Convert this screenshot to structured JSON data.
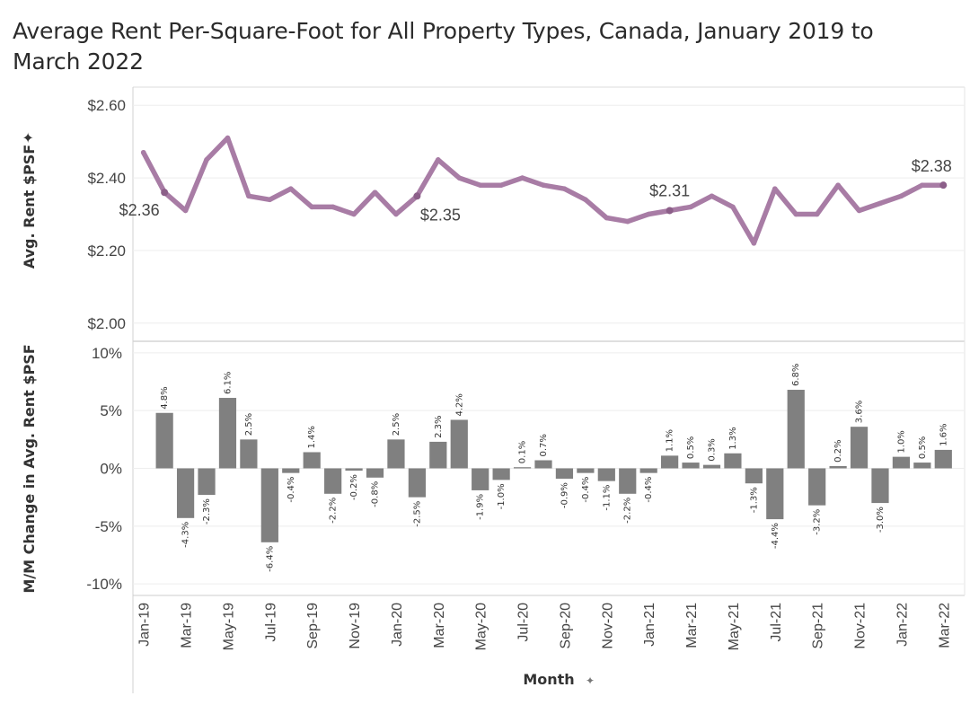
{
  "title": "Average Rent Per-Square-Foot for All Property Types, Canada, January 2019 to March 2022",
  "chart_data": [
    {
      "type": "line",
      "ylabel": "Avg. Rent $PSF",
      "ylim": [
        1.95,
        2.65
      ],
      "yticks": [
        "$2.60",
        "$2.40",
        "$2.20",
        "$2.00"
      ],
      "ytick_values": [
        2.6,
        2.4,
        2.2,
        2.0
      ],
      "color": "#a87ca5",
      "x": [
        "Jan-19",
        "Feb-19",
        "Mar-19",
        "Apr-19",
        "May-19",
        "Jun-19",
        "Jul-19",
        "Aug-19",
        "Sep-19",
        "Oct-19",
        "Nov-19",
        "Dec-19",
        "Jan-20",
        "Feb-20",
        "Mar-20",
        "Apr-20",
        "May-20",
        "Jun-20",
        "Jul-20",
        "Aug-20",
        "Sep-20",
        "Oct-20",
        "Nov-20",
        "Dec-20",
        "Jan-21",
        "Feb-21",
        "Mar-21",
        "Apr-21",
        "May-21",
        "Jun-21",
        "Jul-21",
        "Aug-21",
        "Sep-21",
        "Oct-21",
        "Nov-21",
        "Dec-21",
        "Jan-22",
        "Feb-22",
        "Mar-22"
      ],
      "values": [
        2.47,
        2.36,
        2.31,
        2.45,
        2.51,
        2.35,
        2.34,
        2.37,
        2.32,
        2.32,
        2.3,
        2.36,
        2.3,
        2.35,
        2.45,
        2.4,
        2.38,
        2.38,
        2.4,
        2.38,
        2.37,
        2.34,
        2.29,
        2.28,
        2.3,
        2.31,
        2.32,
        2.35,
        2.32,
        2.22,
        2.37,
        2.3,
        2.3,
        2.38,
        2.31,
        2.33,
        2.35,
        2.38,
        2.38
      ],
      "annotations": [
        {
          "index": 1,
          "label": "$2.36"
        },
        {
          "index": 13,
          "label": "$2.35"
        },
        {
          "index": 25,
          "label": "$2.31"
        },
        {
          "index": 38,
          "label": "$2.38"
        }
      ]
    },
    {
      "type": "bar",
      "ylabel": "M/M Change in Avg. Rent $PSF",
      "ylim": [
        -11,
        11
      ],
      "yticks": [
        "10%",
        "5%",
        "0%",
        "-5%",
        "-10%"
      ],
      "ytick_values": [
        10,
        5,
        0,
        -5,
        -10
      ],
      "xlabel": "Month",
      "color": "#808080",
      "x": [
        "Jan-19",
        "Feb-19",
        "Mar-19",
        "Apr-19",
        "May-19",
        "Jun-19",
        "Jul-19",
        "Aug-19",
        "Sep-19",
        "Oct-19",
        "Nov-19",
        "Dec-19",
        "Jan-20",
        "Feb-20",
        "Mar-20",
        "Apr-20",
        "May-20",
        "Jun-20",
        "Jul-20",
        "Aug-20",
        "Sep-20",
        "Oct-20",
        "Nov-20",
        "Dec-20",
        "Jan-21",
        "Feb-21",
        "Mar-21",
        "Apr-21",
        "May-21",
        "Jun-21",
        "Jul-21",
        "Aug-21",
        "Sep-21",
        "Oct-21",
        "Nov-21",
        "Dec-21",
        "Jan-22",
        "Feb-22",
        "Mar-22"
      ],
      "x_tick_labels": [
        "Jan-19",
        "Mar-19",
        "May-19",
        "Jul-19",
        "Sep-19",
        "Nov-19",
        "Jan-20",
        "Mar-20",
        "May-20",
        "Jul-20",
        "Sep-20",
        "Nov-20",
        "Jan-21",
        "Mar-21",
        "May-21",
        "Jul-21",
        "Sep-21",
        "Nov-21",
        "Jan-22",
        "Mar-22"
      ],
      "values": [
        null,
        4.8,
        -4.3,
        -2.3,
        6.1,
        2.5,
        -6.4,
        -0.4,
        1.4,
        -2.2,
        -0.2,
        -0.8,
        2.5,
        -2.5,
        2.3,
        4.2,
        -1.9,
        -1.0,
        0.1,
        0.7,
        -0.9,
        -0.4,
        -1.1,
        -2.2,
        -0.4,
        1.1,
        0.5,
        0.3,
        1.3,
        -1.3,
        -4.4,
        6.8,
        -3.2,
        0.2,
        3.6,
        -3.0,
        1.0,
        0.5,
        1.6
      ],
      "labels": [
        "",
        "4.8%",
        "-4.3%",
        "-2.3%",
        "6.1%",
        "2.5%",
        "-6.4%",
        "-0.4%",
        "1.4%",
        "-2.2%",
        "-0.2%",
        "-0.8%",
        "2.5%",
        "-2.5%",
        "2.3%",
        "4.2%",
        "-1.9%",
        "-1.0%",
        "0.1%",
        "0.7%",
        "-0.9%",
        "-0.4%",
        "-1.1%",
        "-2.2%",
        "-0.4%",
        "1.1%",
        "0.5%",
        "0.3%",
        "1.3%",
        "-1.3%",
        "-4.4%",
        "6.8%",
        "-3.2%",
        "0.2%",
        "3.6%",
        "-3.0%",
        "1.0%",
        "0.5%",
        "1.6%"
      ]
    }
  ]
}
